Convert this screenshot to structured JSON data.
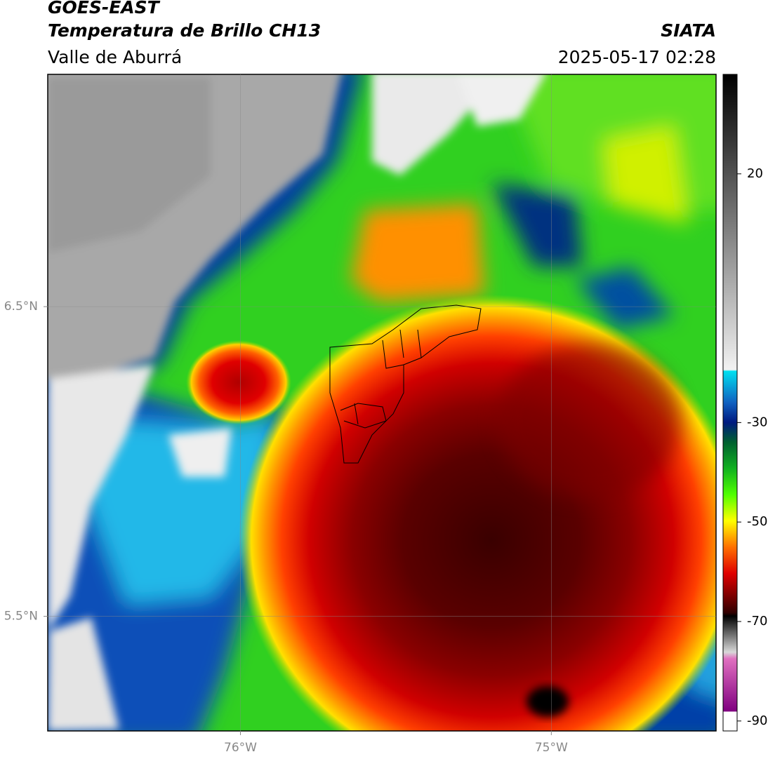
{
  "header": {
    "title": "GOES-EAST",
    "subtitle": "Temperatura de Brillo CH13",
    "region": "Valle de Aburrá",
    "source": "SIATA",
    "datetime": "2025-05-17 02:28"
  },
  "map": {
    "xlim": [
      -76.62,
      -74.47
    ],
    "ylim": [
      5.13,
      7.25
    ],
    "xticks": [
      {
        "value": -76,
        "label": "76°W"
      },
      {
        "value": -75,
        "label": "75°W"
      }
    ],
    "yticks": [
      {
        "value": 6.5,
        "label": "6.5°N"
      },
      {
        "value": 5.5,
        "label": "5.5°N"
      }
    ],
    "grid": true
  },
  "colorbar": {
    "lim": [
      -92,
      40
    ],
    "ticks": [
      20,
      -30,
      -50,
      -70,
      -90
    ]
  }
}
